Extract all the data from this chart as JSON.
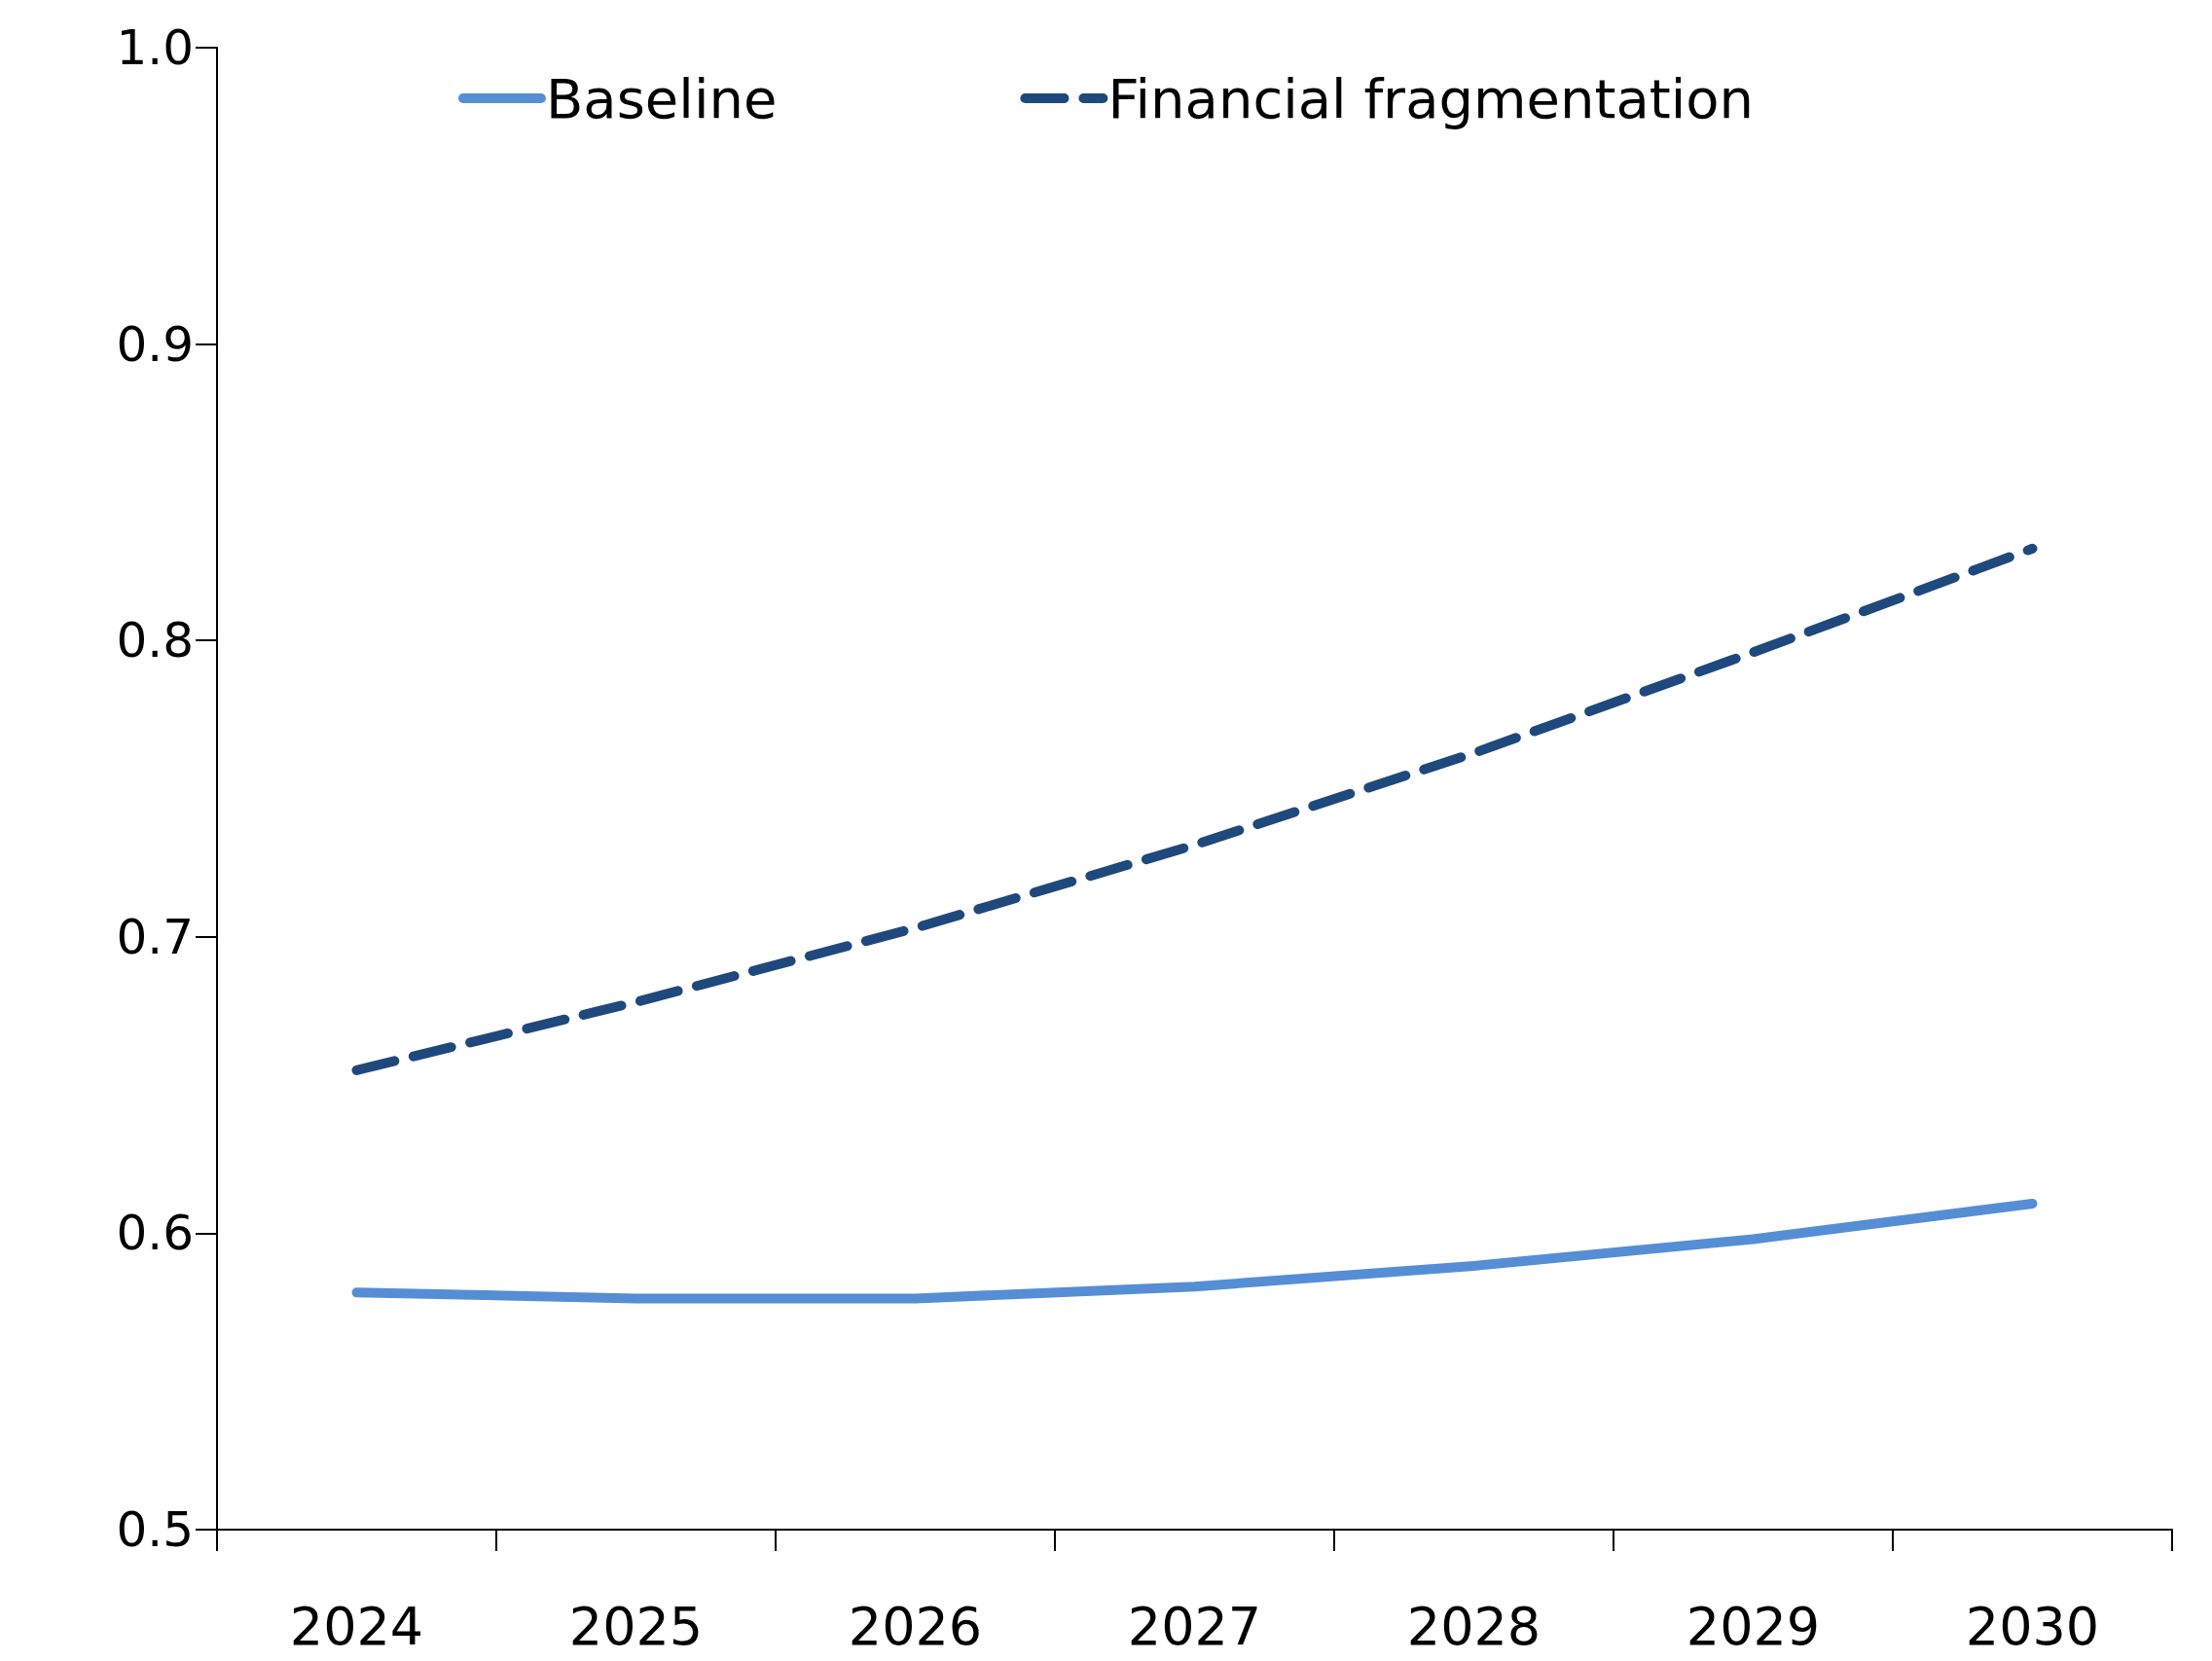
{
  "chart_data": {
    "type": "line",
    "categories": [
      "2024",
      "2025",
      "2026",
      "2027",
      "2028",
      "2029",
      "2030"
    ],
    "series": [
      {
        "name": "Baseline",
        "color": "#558ed5",
        "line_style": "solid",
        "values": [
          0.58,
          0.578,
          0.578,
          0.582,
          0.589,
          0.598,
          0.61
        ]
      },
      {
        "name": "Financial fragmentation",
        "color": "#1f497d",
        "line_style": "dashed",
        "values": [
          0.655,
          0.678,
          0.703,
          0.731,
          0.762,
          0.796,
          0.831
        ]
      }
    ],
    "ylim": [
      0.5,
      1.0
    ],
    "yticks": [
      {
        "value": 0.5,
        "label": "0.5"
      },
      {
        "value": 0.6,
        "label": "0.6"
      },
      {
        "value": 0.7,
        "label": "0.7"
      },
      {
        "value": 0.8,
        "label": "0.8"
      },
      {
        "value": 0.9,
        "label": "0.9"
      },
      {
        "value": 1.0,
        "label": "1.0"
      }
    ],
    "grid": false,
    "legend": "top"
  }
}
